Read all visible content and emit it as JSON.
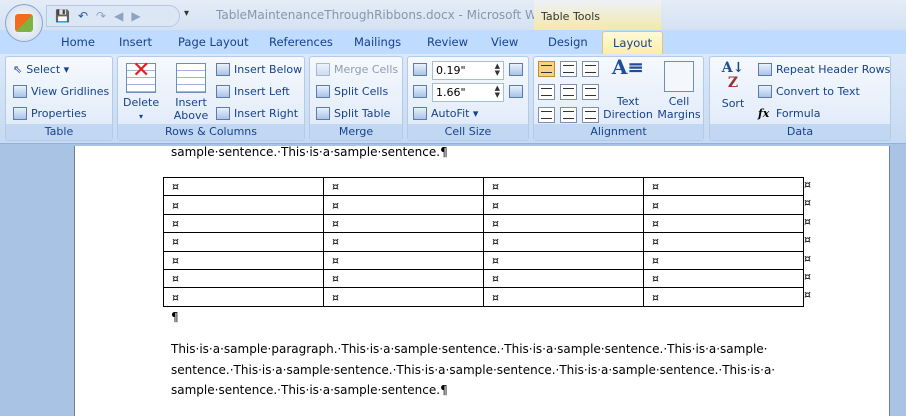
{
  "window": {
    "title": "TableMaintenanceThroughRibbons.docx - Microsoft Word",
    "context_tab_group": "Table Tools"
  },
  "qat": {
    "save": "💾",
    "undo": "↶",
    "redo": "↷",
    "back": "◀",
    "forward": "▶",
    "more": "▾"
  },
  "tabs": [
    "Home",
    "Insert",
    "Page Layout",
    "References",
    "Mailings",
    "Review",
    "View",
    "Design",
    "Layout"
  ],
  "active_tab": "Layout",
  "ribbon": {
    "table": {
      "label": "Table",
      "select": "Select ▾",
      "view_gridlines": "View Gridlines",
      "properties": "Properties"
    },
    "rows_columns": {
      "label": "Rows & Columns",
      "delete": "Delete",
      "insert_above_1": "Insert",
      "insert_above_2": "Above",
      "insert_below": "Insert Below",
      "insert_left": "Insert Left",
      "insert_right": "Insert Right"
    },
    "merge": {
      "label": "Merge",
      "merge_cells": "Merge Cells",
      "split_cells": "Split Cells",
      "split_table": "Split Table"
    },
    "cell_size": {
      "label": "Cell Size",
      "height": "0.19\"",
      "width": "1.66\"",
      "autofit": "AutoFit ▾"
    },
    "alignment": {
      "label": "Alignment",
      "text_direction_1": "Text",
      "text_direction_2": "Direction",
      "cell_margins_1": "Cell",
      "cell_margins_2": "Margins"
    },
    "data": {
      "label": "Data",
      "sort": "Sort",
      "repeat_header_rows": "Repeat Header Rows",
      "convert_to_text": "Convert to Text",
      "formula": "Formula"
    }
  },
  "document": {
    "top_line": "sample·sentence.·This·is·a·sample·sentence.¶",
    "cell_marker": "¤",
    "rows": 7,
    "cols": 4,
    "empty_para": "¶",
    "paragraph": "This·is·a·sample·paragraph.·This·is·a·sample·sentence.·This·is·a·sample·sentence.·This·is·a·sample·\nsentence.·This·is·a·sample·sentence.·This·is·a·sample·sentence.·This·is·a·sample·sentence.·This·is·a·\nsample·sentence.·This·is·a·sample·sentence.¶"
  }
}
